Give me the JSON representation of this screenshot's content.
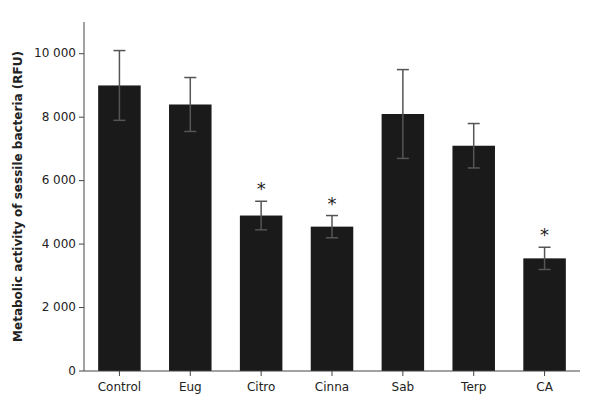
{
  "chart_data": {
    "type": "bar",
    "categories": [
      "Control",
      "Eug",
      "Citro",
      "Cinna",
      "Sab",
      "Terp",
      "CA"
    ],
    "values": [
      9000,
      8400,
      4900,
      4550,
      8100,
      7100,
      3550
    ],
    "errors": [
      1100,
      850,
      450,
      350,
      1400,
      700,
      350
    ],
    "color": "#1a1a1a",
    "ylabel": "Metabolic activity of sessile bacteria (RFU)",
    "ylim": [
      0,
      11000
    ],
    "yticks": [
      0,
      {
        "value": 2000,
        "label": "2 000"
      },
      {
        "value": 4000,
        "label": "4 000"
      },
      {
        "value": 6000,
        "label": "6 000"
      },
      {
        "value": 8000,
        "label": "8 000"
      },
      {
        "value": 10000,
        "label": "10 000"
      }
    ],
    "annotations": [
      {
        "text": "*",
        "category": "Citro"
      },
      {
        "text": "*",
        "category": "Cinna"
      },
      {
        "text": "*",
        "category": "CA"
      }
    ],
    "grid": false
  }
}
